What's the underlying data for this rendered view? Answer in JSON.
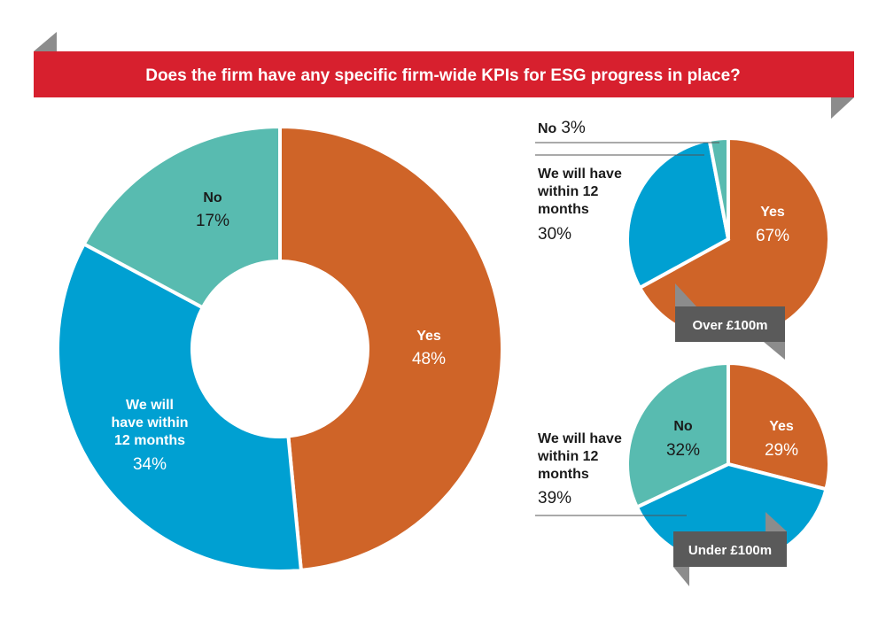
{
  "colors": {
    "yes": "#cf6428",
    "will_have": "#00a0d2",
    "no": "#58bbb0",
    "banner": "#d7202e",
    "box": "#5a5a5a",
    "corner": "#8c8c8c"
  },
  "chart_data": [
    {
      "type": "pie",
      "variant": "donut",
      "title": "Does the firm have any specific firm-wide KPIs for ESG progress in place?",
      "slices": [
        {
          "label": "Yes",
          "value": 48,
          "value_text": "48%"
        },
        {
          "label_lines": [
            "We will",
            "have within",
            "12 months"
          ],
          "value": 34,
          "value_text": "34%"
        },
        {
          "label": "No",
          "value": 17,
          "value_text": "17%"
        }
      ]
    },
    {
      "type": "pie",
      "title": "Over £100m",
      "slices": [
        {
          "label": "Yes",
          "value": 67,
          "value_text": "67%"
        },
        {
          "label_lines": [
            "We will have",
            "within 12",
            "months"
          ],
          "value": 30,
          "value_text": "30%"
        },
        {
          "label": "No",
          "value": 3,
          "value_text": "3%"
        }
      ]
    },
    {
      "type": "pie",
      "title": "Under £100m",
      "slices": [
        {
          "label": "Yes",
          "value": 29,
          "value_text": "29%"
        },
        {
          "label_lines": [
            "We will have",
            "within 12",
            "months"
          ],
          "value": 39,
          "value_text": "39%"
        },
        {
          "label": "No",
          "value": 32,
          "value_text": "32%"
        }
      ]
    }
  ]
}
